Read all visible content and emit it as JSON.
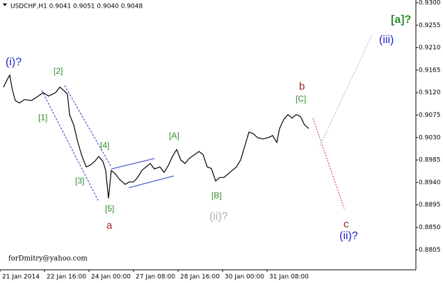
{
  "chart_data": {
    "type": "line",
    "title": "USDCHF,H1 0.9041 0.9051 0.9040 0.9048",
    "footer": "forDmitry@yahoo.com",
    "annotations": [
      "(i)?",
      "[2]",
      "[1]",
      "[3]",
      "[4]",
      "[5]",
      "a",
      "[A]",
      "[B]",
      "(ii)?",
      "b",
      "[C]",
      "c",
      "(ii)?",
      "(iii)",
      "[a]?"
    ],
    "series": [
      {
        "name": "USDCHF",
        "color": "#000000",
        "x": [
          2.5,
          5,
          7,
          9,
          11,
          14,
          17.5,
          22.5,
          27.5,
          31,
          35,
          40,
          43,
          46,
          48.5,
          50,
          53,
          56,
          59,
          62,
          65,
          68,
          71,
          74,
          76,
          78,
          80,
          83,
          86,
          90,
          93,
          96,
          99,
          102,
          105,
          108,
          111,
          115,
          118,
          121,
          124,
          127,
          130,
          133,
          136,
          140,
          143,
          146,
          149,
          152,
          155,
          158,
          161,
          164,
          167,
          170,
          173,
          176,
          179,
          182,
          185,
          189,
          193,
          196,
          199,
          201,
          204,
          207,
          210,
          213,
          216,
          219,
          222
        ],
        "values": [
          0.9131,
          0.9145,
          0.9155,
          0.9124,
          0.9104,
          0.9099,
          0.9106,
          0.9104,
          0.9113,
          0.912,
          0.9113,
          0.912,
          0.9131,
          0.9124,
          0.9117,
          0.9076,
          0.9055,
          0.902,
          0.8992,
          0.8971,
          0.8975,
          0.8982,
          0.8992,
          0.8982,
          0.8964,
          0.8908,
          0.8964,
          0.8957,
          0.8946,
          0.8936,
          0.8941,
          0.8941,
          0.895,
          0.8964,
          0.8971,
          0.8978,
          0.8967,
          0.8971,
          0.896,
          0.8974,
          0.8992,
          0.9006,
          0.8985,
          0.8978,
          0.8988,
          0.8996,
          0.9002,
          0.8996,
          0.8971,
          0.8968,
          0.8943,
          0.895,
          0.895,
          0.8957,
          0.8964,
          0.8971,
          0.8985,
          0.9013,
          0.9041,
          0.9038,
          0.903,
          0.9027,
          0.903,
          0.9034,
          0.902,
          0.9048,
          0.9066,
          0.9076,
          0.9069,
          0.9076,
          0.9072,
          0.9055,
          0.9048
        ]
      }
    ],
    "xlim": [
      0,
      299
    ],
    "xticks": [
      {
        "value": 0,
        "label": "21 Jan 2014"
      },
      {
        "value": 32,
        "label": "22 Jan 16:00"
      },
      {
        "value": 64,
        "label": "24 Jan 00:00"
      },
      {
        "value": 96,
        "label": "27 Jan 08:00"
      },
      {
        "value": 128,
        "label": "28 Jan 16:00"
      },
      {
        "value": 160,
        "label": "30 Jan 00:00"
      },
      {
        "value": 192,
        "label": "31 Jan 08:00"
      }
    ],
    "ylim": [
      0.8765,
      0.93055
    ],
    "yticks": [
      {
        "value": 0.93,
        "label": "0.9300"
      },
      {
        "value": 0.9255,
        "label": "0.9255"
      },
      {
        "value": 0.921,
        "label": "0.9210"
      },
      {
        "value": 0.9165,
        "label": "0.9165"
      },
      {
        "value": 0.912,
        "label": "0.9120"
      },
      {
        "value": 0.9075,
        "label": "0.9075"
      },
      {
        "value": 0.903,
        "label": "0.9030"
      },
      {
        "value": 0.8985,
        "label": "0.8985"
      },
      {
        "value": 0.894,
        "label": "0.8940"
      },
      {
        "value": 0.8895,
        "label": "0.8895"
      },
      {
        "value": 0.885,
        "label": "0.8850"
      },
      {
        "value": 0.8805,
        "label": "0.8805"
      }
    ]
  }
}
